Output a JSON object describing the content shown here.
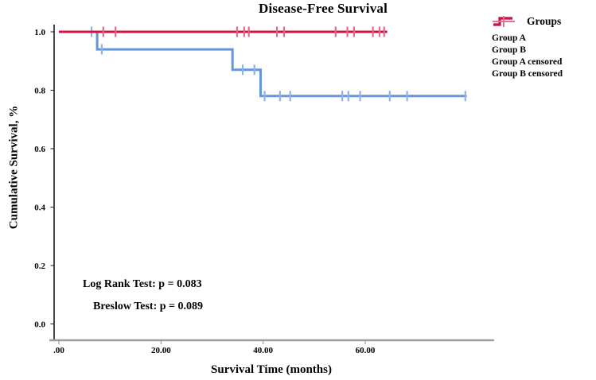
{
  "chart_data": {
    "type": "line",
    "subtype": "kaplan-meier-step",
    "title": "Disease-Free Survival",
    "xlabel": "Survival Time (months)",
    "ylabel": "Cumulative Survival, %",
    "xlim": [
      -2,
      85
    ],
    "ylim": [
      -0.06,
      1.03
    ],
    "grid": false,
    "x_ticks": {
      "values": [
        0,
        20,
        40,
        60
      ],
      "labels": [
        ".00",
        "20.00",
        "40.00",
        "60.00"
      ]
    },
    "y_ticks": {
      "values": [
        0.0,
        0.2,
        0.4,
        0.6,
        0.8,
        1.0
      ],
      "labels": [
        "0.0",
        "0.2",
        "0.4",
        "0.6",
        "0.8",
        "1.0"
      ]
    },
    "series": [
      {
        "name": "Group A",
        "color": "#6496DB",
        "step_points": [
          [
            0,
            1.0
          ],
          [
            7.5,
            1.0
          ],
          [
            7.5,
            0.94
          ],
          [
            34.0,
            0.94
          ],
          [
            34.0,
            0.87
          ],
          [
            39.5,
            0.87
          ],
          [
            39.5,
            0.78
          ],
          [
            79.9,
            0.78
          ]
        ],
        "censored_color": "#8FB3E6",
        "censored_points": [
          [
            6.4,
            1.0
          ],
          [
            8.4,
            0.94
          ],
          [
            36.0,
            0.87
          ],
          [
            38.3,
            0.87
          ],
          [
            40.3,
            0.78
          ],
          [
            43.3,
            0.78
          ],
          [
            45.3,
            0.78
          ],
          [
            55.5,
            0.78
          ],
          [
            56.7,
            0.78
          ],
          [
            59.0,
            0.78
          ],
          [
            64.8,
            0.78
          ],
          [
            68.2,
            0.78
          ],
          [
            79.6,
            0.78
          ]
        ]
      },
      {
        "name": "Group B",
        "color": "#D6103F",
        "step_points": [
          [
            0,
            1.0
          ],
          [
            64.3,
            1.0
          ]
        ],
        "censored_color": "#DB6D8C",
        "censored_points": [
          [
            8.7,
            1.0
          ],
          [
            11.1,
            1.0
          ],
          [
            34.9,
            1.0
          ],
          [
            36.3,
            1.0
          ],
          [
            37.2,
            1.0
          ],
          [
            42.7,
            1.0
          ],
          [
            44.1,
            1.0
          ],
          [
            54.2,
            1.0
          ],
          [
            56.5,
            1.0
          ],
          [
            57.8,
            1.0
          ],
          [
            61.5,
            1.0
          ],
          [
            62.8,
            1.0
          ],
          [
            63.7,
            1.0
          ]
        ]
      }
    ],
    "legend": {
      "title": "Groups",
      "position": "top-right",
      "entries": [
        {
          "label": "Group A",
          "glyph": "step-line",
          "color": "#6496DB"
        },
        {
          "label": "Group B",
          "glyph": "step-line",
          "color": "#D6103F"
        },
        {
          "label": "Group A censored",
          "glyph": "censor-cross",
          "color": "#8FB3E6"
        },
        {
          "label": "Group B censored",
          "glyph": "censor-cross",
          "color": "#DB6D8C"
        }
      ]
    },
    "annotations": [
      {
        "text": "Log Rank Test: p = 0.083"
      },
      {
        "text": "Breslow Test: p = 0.089"
      }
    ]
  }
}
